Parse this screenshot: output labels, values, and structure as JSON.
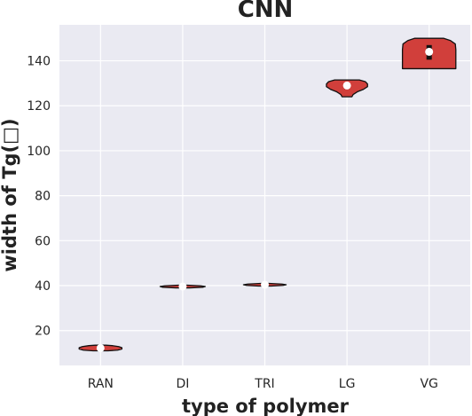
{
  "chart_data": {
    "type": "violin",
    "title": "CNN",
    "xlabel": "type of polymer",
    "ylabel": "width of Tg(□)",
    "categories": [
      "RAN",
      "DI",
      "TRI",
      "LG",
      "VG"
    ],
    "ylim": [
      4.5,
      156
    ],
    "yticks": [
      20,
      40,
      60,
      80,
      100,
      120,
      140
    ],
    "grid": true,
    "background": "#eaeaf2",
    "violin_color": "#d13f3b",
    "edge_color": "#111111",
    "median_color": "#ffffff",
    "violins": [
      {
        "category": "RAN",
        "min": 11.0,
        "max": 13.5,
        "median": 12.2,
        "q1": 12.0,
        "q3": 12.5,
        "maxWidth": 0.52,
        "profile": [
          [
            11.0,
            0.35
          ],
          [
            11.3,
            0.8
          ],
          [
            11.8,
            1.0
          ],
          [
            12.4,
            1.0
          ],
          [
            12.9,
            0.85
          ],
          [
            13.3,
            0.55
          ],
          [
            13.5,
            0.25
          ]
        ]
      },
      {
        "category": "DI",
        "min": 39.0,
        "max": 40.2,
        "median": 39.6,
        "q1": 39.5,
        "q3": 39.8,
        "maxWidth": 0.55,
        "profile": [
          [
            39.0,
            0.3
          ],
          [
            39.3,
            0.9
          ],
          [
            39.6,
            1.0
          ],
          [
            39.9,
            0.8
          ],
          [
            40.2,
            0.2
          ]
        ]
      },
      {
        "category": "TRI",
        "min": 39.8,
        "max": 41.0,
        "median": 40.4,
        "q1": 40.3,
        "q3": 40.6,
        "maxWidth": 0.52,
        "profile": [
          [
            39.8,
            0.3
          ],
          [
            40.1,
            0.85
          ],
          [
            40.4,
            1.0
          ],
          [
            40.7,
            0.8
          ],
          [
            41.0,
            0.2
          ]
        ]
      },
      {
        "category": "LG",
        "min": 124.0,
        "max": 131.5,
        "median": 129.0,
        "q1": 127.5,
        "q3": 130.0,
        "maxWidth": 0.5,
        "profile": [
          [
            124.0,
            0.24
          ],
          [
            125.0,
            0.3
          ],
          [
            126.2,
            0.5
          ],
          [
            127.3,
            0.8
          ],
          [
            128.5,
            1.0
          ],
          [
            129.7,
            1.0
          ],
          [
            130.7,
            0.9
          ],
          [
            131.5,
            0.6
          ]
        ]
      },
      {
        "category": "VG",
        "min": 136.5,
        "max": 150.0,
        "median": 144.0,
        "q1": 140.5,
        "q3": 147.0,
        "maxWidth": 0.65,
        "profile": [
          [
            136.5,
            1.0
          ],
          [
            139.0,
            1.0
          ],
          [
            142.0,
            1.0
          ],
          [
            145.0,
            1.0
          ],
          [
            147.5,
            0.98
          ],
          [
            149.0,
            0.8
          ],
          [
            150.0,
            0.55
          ]
        ]
      }
    ]
  }
}
